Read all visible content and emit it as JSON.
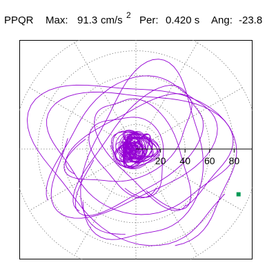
{
  "header": {
    "station": "PPQR",
    "max_label": "Max:",
    "max_value": "91.3",
    "max_unit": "cm/s",
    "max_unit_exp": "2",
    "period_label": "Per:",
    "period_value": "0.420 s",
    "angle_label": "Ang:",
    "angle_value": "-23.8"
  },
  "colors": {
    "trace": "#9400d3",
    "marker": "#009955",
    "grid": "#777777",
    "axis": "#000000"
  },
  "chart_data": {
    "type": "polar-orbit",
    "radial_ticks": [
      "20",
      "40",
      "60",
      "80"
    ],
    "radial_tick_values": [
      20,
      40,
      60,
      80
    ],
    "outer_ring_value": 100,
    "max": 91.3,
    "marker_angle_deg": -23.8
  }
}
